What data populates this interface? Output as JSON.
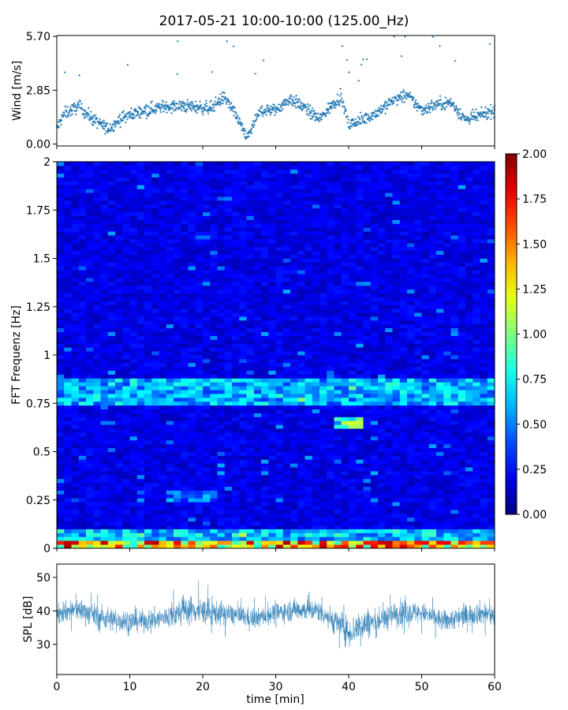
{
  "title": "2017-05-21 10:00-10:00 (125.00_Hz)",
  "colors": {
    "series": "#1f77b4",
    "axis": "#000000",
    "background": "#ffffff"
  },
  "chart_data": [
    {
      "type": "scatter",
      "ylabel": "Wind [m/s]",
      "xlabel": "",
      "xlim": [
        0,
        60
      ],
      "ylim": [
        -0.1,
        5.75
      ],
      "yticks": [
        "0.00",
        "2.85",
        "5.70"
      ],
      "ytick_values": [
        0.0,
        2.85,
        5.7
      ],
      "xticks_shown": false,
      "grid": false,
      "note_values": "approx. 1200 wind samples; mean level ~1.7 m/s, rising to ~2.6 around 46-50 min, minimum ~0.1 at ~26 min, spikes to 5.7",
      "trend": [
        [
          0,
          0.8
        ],
        [
          1,
          1.6
        ],
        [
          3,
          2.0
        ],
        [
          5,
          1.3
        ],
        [
          7,
          0.8
        ],
        [
          9,
          1.4
        ],
        [
          12,
          1.8
        ],
        [
          15,
          2.0
        ],
        [
          18,
          2.0
        ],
        [
          21,
          1.9
        ],
        [
          23,
          2.5
        ],
        [
          25,
          1.2
        ],
        [
          26,
          0.3
        ],
        [
          28,
          1.8
        ],
        [
          30,
          1.8
        ],
        [
          32,
          2.4
        ],
        [
          34,
          1.9
        ],
        [
          36,
          1.3
        ],
        [
          38,
          2.2
        ],
        [
          39,
          2.5
        ],
        [
          40,
          1.0
        ],
        [
          42,
          1.3
        ],
        [
          44,
          1.7
        ],
        [
          46,
          2.3
        ],
        [
          48,
          2.6
        ],
        [
          50,
          1.8
        ],
        [
          52,
          2.1
        ],
        [
          54,
          2.2
        ],
        [
          56,
          1.3
        ],
        [
          58,
          1.5
        ],
        [
          60,
          1.8
        ]
      ]
    },
    {
      "type": "heatmap",
      "ylabel": "FFT Frequenz [Hz]",
      "xlabel": "",
      "xlim": [
        0,
        60
      ],
      "ylim": [
        0,
        2
      ],
      "yticks": [
        "0",
        "0.25",
        "0.5",
        "0.75",
        "1",
        "1.25",
        "1.5",
        "1.75",
        "2"
      ],
      "ytick_values": [
        0,
        0.25,
        0.5,
        0.75,
        1,
        1.25,
        1.5,
        1.75,
        2
      ],
      "colormap": "jet",
      "colorbar": {
        "min": 0,
        "max": 2,
        "ticks": [
          "0.00",
          "0.25",
          "0.50",
          "0.75",
          "1.00",
          "1.25",
          "1.50",
          "1.75",
          "2.00"
        ],
        "tick_values": [
          0,
          0.25,
          0.5,
          0.75,
          1.0,
          1.25,
          1.5,
          1.75,
          2.0
        ]
      },
      "features": [
        {
          "freq_range": [
            0.0,
            0.03
          ],
          "time_range": [
            0,
            60
          ],
          "value": 1.6
        },
        {
          "freq_range": [
            0.03,
            0.1
          ],
          "time_range": [
            0,
            60
          ],
          "value": 0.75
        },
        {
          "freq_range": [
            0.75,
            0.88
          ],
          "time_range": [
            0,
            60
          ],
          "value": 0.7
        },
        {
          "freq_range": [
            0.63,
            0.68
          ],
          "time_range": [
            38,
            42
          ],
          "value": 1.0
        },
        {
          "freq_range": [
            0.25,
            0.3
          ],
          "time_range": [
            15,
            22
          ],
          "value": 0.55
        }
      ],
      "background_value": 0.2
    },
    {
      "type": "line",
      "ylabel": "SPL [dB]",
      "xlabel": "time [min]",
      "xlim": [
        0,
        60
      ],
      "ylim": [
        21,
        54
      ],
      "xticks": [
        "0",
        "10",
        "20",
        "30",
        "40",
        "50",
        "60"
      ],
      "xtick_values": [
        0,
        10,
        20,
        30,
        40,
        50,
        60
      ],
      "yticks": [
        "30",
        "40",
        "50"
      ],
      "ytick_values": [
        30,
        40,
        50
      ],
      "envelope": [
        [
          0,
          33,
          46
        ],
        [
          3,
          33,
          48
        ],
        [
          6,
          30,
          46
        ],
        [
          9,
          29,
          45
        ],
        [
          12,
          30,
          44
        ],
        [
          15,
          30,
          46
        ],
        [
          18,
          31,
          50
        ],
        [
          21,
          31,
          48
        ],
        [
          24,
          32,
          46
        ],
        [
          27,
          31,
          44
        ],
        [
          30,
          33,
          46
        ],
        [
          33,
          33,
          48
        ],
        [
          36,
          33,
          47
        ],
        [
          39,
          26,
          45
        ],
        [
          40,
          24,
          43
        ],
        [
          42,
          25,
          47
        ],
        [
          44,
          29,
          45
        ],
        [
          47,
          31,
          48
        ],
        [
          50,
          33,
          46
        ],
        [
          53,
          30,
          44
        ],
        [
          56,
          31,
          46
        ],
        [
          58,
          32,
          47
        ],
        [
          60,
          31,
          46
        ]
      ]
    }
  ]
}
